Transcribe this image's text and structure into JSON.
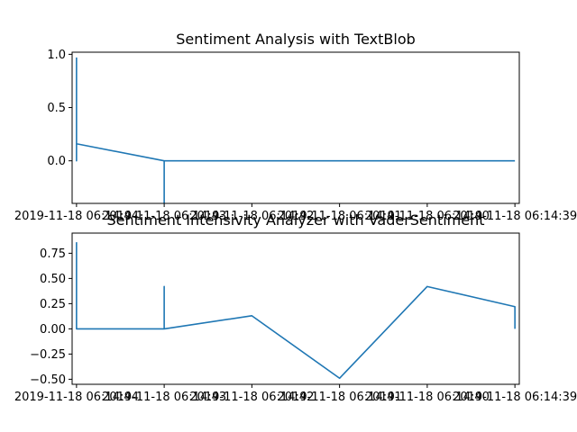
{
  "chart_data": [
    {
      "type": "line",
      "title": "Sentiment Analysis with TextBlob",
      "xlabel": "",
      "ylabel": "",
      "grid": false,
      "x_ticks": [
        "2019-11-18 06:14:44",
        "2019-11-18 06:14:43",
        "2019-11-18 06:14:42",
        "2019-11-18 06:14:41",
        "2019-11-18 06:14:40",
        "2019-11-18 06:14:39"
      ],
      "y_ticks": [
        "1.0",
        "0.5",
        "0.0"
      ],
      "y_tick_values": [
        1.0,
        0.5,
        0.0
      ],
      "xlim": [
        -0.05,
        5.05
      ],
      "ylim": [
        -0.4,
        1.02
      ],
      "color": "#1f77b4",
      "series": [
        {
          "x": [
            0,
            0,
            0,
            0,
            0,
            0,
            0,
            0,
            0,
            0,
            0,
            0,
            1,
            1,
            1,
            1,
            1,
            2,
            3,
            4,
            5
          ],
          "y": [
            0.97,
            0.0,
            0.9,
            0.05,
            0.6,
            0.02,
            0.8,
            0.1,
            0.5,
            0.0,
            0.3,
            0.16,
            0.0,
            -0.4,
            0.0,
            -0.3,
            0.0,
            0.0,
            0.0,
            0.0,
            0.0
          ]
        }
      ]
    },
    {
      "type": "line",
      "title": "Sentiment Intensivity Analyzer with VaderSentiment",
      "xlabel": "",
      "ylabel": "",
      "grid": false,
      "x_ticks": [
        "2019-11-18 06:14:44",
        "2019-11-18 06:14:43",
        "2019-11-18 06:14:42",
        "2019-11-18 06:14:41",
        "2019-11-18 06:14:40",
        "2019-11-18 06:14:39"
      ],
      "y_ticks": [
        "0.75",
        "0.50",
        "0.25",
        "0.00",
        "−0.25",
        "−0.50"
      ],
      "y_tick_values": [
        0.75,
        0.5,
        0.25,
        0.0,
        -0.25,
        -0.5
      ],
      "xlim": [
        -0.05,
        5.05
      ],
      "ylim": [
        -0.55,
        0.95
      ],
      "color": "#1f77b4",
      "series": [
        {
          "x": [
            0,
            0,
            0,
            0,
            0,
            0,
            0,
            0,
            0,
            0,
            0,
            1,
            1,
            1,
            1,
            1,
            2,
            3,
            4,
            5,
            5
          ],
          "y": [
            0.86,
            0.0,
            0.68,
            0.0,
            0.6,
            0.02,
            0.4,
            0.0,
            0.25,
            0.0,
            0.0,
            0.0,
            0.42,
            0.0,
            0.38,
            0.0,
            0.13,
            -0.49,
            0.42,
            0.22,
            0.0
          ]
        }
      ]
    }
  ]
}
